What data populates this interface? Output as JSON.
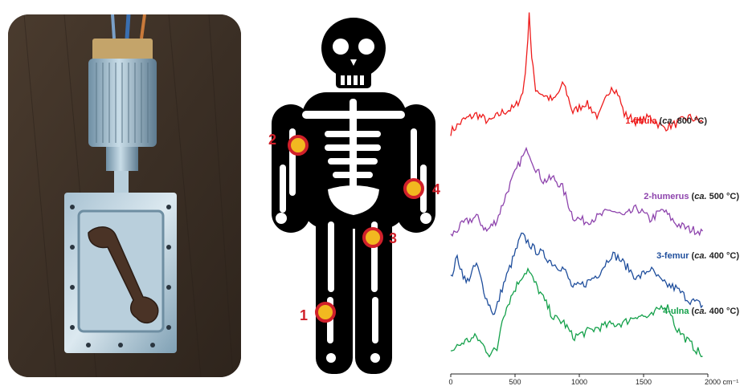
{
  "sites": [
    {
      "number": "1",
      "bone": "fibula"
    },
    {
      "number": "2",
      "bone": "humerus"
    },
    {
      "number": "3",
      "bone": "femur"
    },
    {
      "number": "4",
      "bone": "ulna"
    }
  ],
  "spectrum_labels": [
    {
      "name": "1-fibula",
      "prefix": " (",
      "ca": "ca.",
      "temp": " 800 °C)",
      "color": "#ee1c1c"
    },
    {
      "name": "2-humerus",
      "prefix": " (",
      "ca": "ca.",
      "temp": " 500 °C)",
      "color": "#8e44ad"
    },
    {
      "name": "3-femur",
      "prefix": " (",
      "ca": "ca.",
      "temp": " 400 °C)",
      "color": "#1f4e9c"
    },
    {
      "name": "4-ulna",
      "prefix": " (",
      "ca": "ca.",
      "temp": " 400 °C)",
      "color": "#14a04a"
    }
  ],
  "axis": {
    "ticks": [
      "0",
      "500",
      "1000",
      "1500",
      "2000 cm⁻¹"
    ]
  },
  "chart_data": {
    "type": "line",
    "xlim": [
      0,
      2000
    ],
    "series": [
      {
        "name": "1-fibula",
        "color": "#ee1c1c",
        "x": [
          0,
          100,
          200,
          300,
          400,
          500,
          560,
          590,
          610,
          630,
          660,
          700,
          800,
          880,
          950,
          1050,
          1150,
          1250,
          1300,
          1350,
          1450,
          1550,
          1650,
          1750,
          1850,
          1960
        ],
        "y": [
          0.3,
          0.42,
          0.48,
          0.4,
          0.5,
          0.55,
          0.7,
          1.05,
          1.55,
          1.05,
          0.75,
          0.7,
          0.62,
          0.8,
          0.5,
          0.6,
          0.45,
          0.78,
          0.7,
          0.48,
          0.4,
          0.45,
          0.34,
          0.38,
          0.45,
          0.4
        ]
      },
      {
        "name": "2-humerus",
        "color": "#8e44ad",
        "x": [
          0,
          100,
          200,
          280,
          360,
          450,
          550,
          600,
          650,
          720,
          800,
          870,
          950,
          1050,
          1150,
          1250,
          1350,
          1450,
          1550,
          1650,
          1750,
          1850,
          1960
        ],
        "y": [
          0.05,
          0.18,
          0.25,
          0.1,
          0.22,
          0.55,
          0.85,
          0.95,
          0.78,
          0.62,
          0.65,
          0.55,
          0.25,
          0.2,
          0.25,
          0.32,
          0.25,
          0.34,
          0.22,
          0.32,
          0.18,
          0.12,
          0.1
        ]
      },
      {
        "name": "3-femur",
        "color": "#1f4e9c",
        "x": [
          0,
          50,
          120,
          200,
          280,
          340,
          400,
          470,
          550,
          600,
          650,
          720,
          800,
          880,
          950,
          1050,
          1150,
          1250,
          1300,
          1350,
          1450,
          1550,
          1650,
          1750,
          1850,
          1960
        ],
        "y": [
          0.4,
          0.62,
          0.35,
          0.55,
          0.18,
          0.02,
          0.3,
          0.55,
          0.85,
          0.78,
          0.7,
          0.65,
          0.55,
          0.5,
          0.3,
          0.35,
          0.45,
          0.65,
          0.62,
          0.55,
          0.4,
          0.5,
          0.35,
          0.3,
          0.18,
          0.12
        ]
      },
      {
        "name": "4-ulna",
        "color": "#14a04a",
        "x": [
          0,
          100,
          200,
          300,
          360,
          400,
          480,
          550,
          600,
          650,
          720,
          800,
          880,
          950,
          1050,
          1150,
          1250,
          1350,
          1450,
          1550,
          1650,
          1700,
          1750,
          1850,
          1960
        ],
        "y": [
          0.1,
          0.2,
          0.25,
          0.08,
          0.12,
          0.45,
          0.7,
          0.88,
          0.95,
          0.82,
          0.65,
          0.45,
          0.4,
          0.25,
          0.3,
          0.35,
          0.38,
          0.4,
          0.48,
          0.45,
          0.58,
          0.55,
          0.35,
          0.2,
          0.05
        ]
      }
    ]
  }
}
